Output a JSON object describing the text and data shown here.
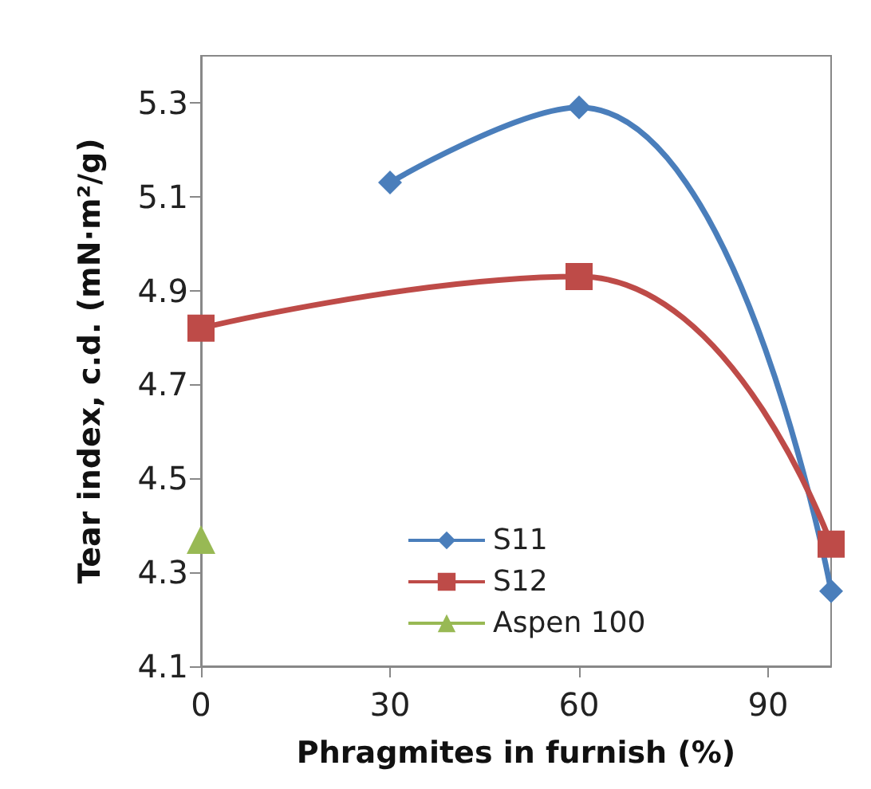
{
  "chart_data": {
    "type": "line",
    "xlabel": "Phragmites in furnish (%)",
    "ylabel": "Tear index, c.d. (mN·m²/g)",
    "xlim": [
      0,
      100
    ],
    "xticks": [
      0,
      30,
      60,
      90
    ],
    "ylim": [
      4.1,
      5.4
    ],
    "yticks": [
      4.1,
      4.3,
      4.5,
      4.7,
      4.9,
      5.1,
      5.3
    ],
    "grid": false,
    "legend": "bottom",
    "series": [
      {
        "name": "S11",
        "color": "#4a7ebb",
        "marker": "diamond",
        "x": [
          30,
          60,
          100
        ],
        "values": [
          5.13,
          5.29,
          4.26
        ]
      },
      {
        "name": "S12",
        "color": "#be4b48",
        "marker": "square",
        "x": [
          0,
          60,
          100
        ],
        "values": [
          4.82,
          4.93,
          4.36
        ]
      },
      {
        "name": "Aspen 100",
        "color": "#98b954",
        "marker": "triangle",
        "x": [
          0
        ],
        "values": [
          4.37
        ]
      }
    ]
  }
}
